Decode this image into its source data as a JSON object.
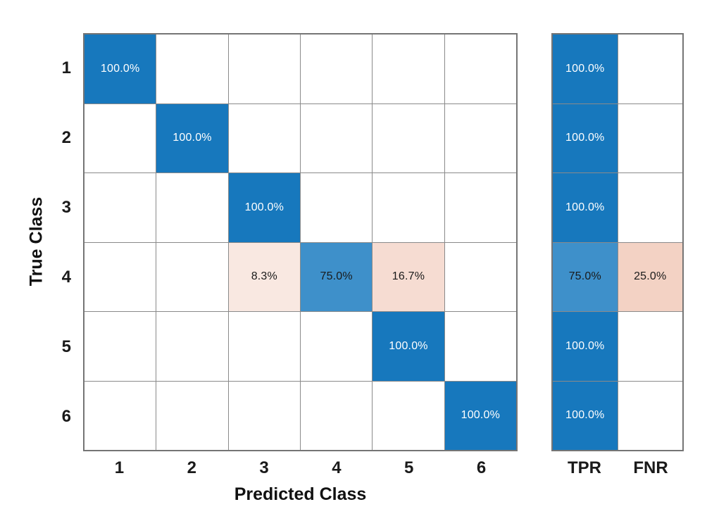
{
  "palette": {
    "diagonal_blue": "#1778BD",
    "light_blue": "#3E90CA",
    "pink_faint": "#F9E8E1",
    "pink_light": "#F6DCD2",
    "pink_medium": "#F3D2C4",
    "cell_white": "#FFFFFF",
    "grid_line": "#8A8A8A",
    "outer_border": "#757575",
    "text_dark": "#1A1A1A",
    "text_light": "#FFFFFF"
  },
  "chart_data": {
    "type": "heatmap",
    "subtype": "confusion-matrix-row-normalized",
    "title": "",
    "xlabel": "Predicted Class",
    "ylabel": "True Class",
    "x_tick_labels": [
      "1",
      "2",
      "3",
      "4",
      "5",
      "6"
    ],
    "y_tick_labels": [
      "1",
      "2",
      "3",
      "4",
      "5",
      "6"
    ],
    "summary_tick_labels": [
      "TPR",
      "FNR"
    ],
    "matrix_percent": [
      [
        100.0,
        0,
        0,
        0,
        0,
        0
      ],
      [
        0,
        100.0,
        0,
        0,
        0,
        0
      ],
      [
        0,
        0,
        100.0,
        0,
        0,
        0
      ],
      [
        0,
        0,
        8.3,
        75.0,
        16.7,
        0
      ],
      [
        0,
        0,
        0,
        0,
        100.0,
        0
      ],
      [
        0,
        0,
        0,
        0,
        0,
        100.0
      ]
    ],
    "tpr_percent": [
      100.0,
      100.0,
      100.0,
      75.0,
      100.0,
      100.0
    ],
    "fnr_percent": [
      null,
      null,
      null,
      25.0,
      null,
      null
    ],
    "grid_on": true,
    "cells": [
      [
        {
          "t": "100.0%",
          "c": "diagonal_blue",
          "f": "light"
        },
        null,
        null,
        null,
        null,
        null
      ],
      [
        null,
        {
          "t": "100.0%",
          "c": "diagonal_blue",
          "f": "light"
        },
        null,
        null,
        null,
        null
      ],
      [
        null,
        null,
        {
          "t": "100.0%",
          "c": "diagonal_blue",
          "f": "light"
        },
        null,
        null,
        null
      ],
      [
        null,
        null,
        {
          "t": "8.3%",
          "c": "pink_faint",
          "f": "dark"
        },
        {
          "t": "75.0%",
          "c": "light_blue",
          "f": "dark"
        },
        {
          "t": "16.7%",
          "c": "pink_light",
          "f": "dark"
        },
        null
      ],
      [
        null,
        null,
        null,
        null,
        {
          "t": "100.0%",
          "c": "diagonal_blue",
          "f": "light"
        },
        null
      ],
      [
        null,
        null,
        null,
        null,
        null,
        {
          "t": "100.0%",
          "c": "diagonal_blue",
          "f": "light"
        }
      ]
    ],
    "summary_cells": [
      [
        {
          "t": "100.0%",
          "c": "diagonal_blue",
          "f": "light"
        },
        null
      ],
      [
        {
          "t": "100.0%",
          "c": "diagonal_blue",
          "f": "light"
        },
        null
      ],
      [
        {
          "t": "100.0%",
          "c": "diagonal_blue",
          "f": "light"
        },
        null
      ],
      [
        {
          "t": "75.0%",
          "c": "light_blue",
          "f": "dark"
        },
        {
          "t": "25.0%",
          "c": "pink_medium",
          "f": "dark"
        }
      ],
      [
        {
          "t": "100.0%",
          "c": "diagonal_blue",
          "f": "light"
        },
        null
      ],
      [
        {
          "t": "100.0%",
          "c": "diagonal_blue",
          "f": "light"
        },
        null
      ]
    ]
  }
}
